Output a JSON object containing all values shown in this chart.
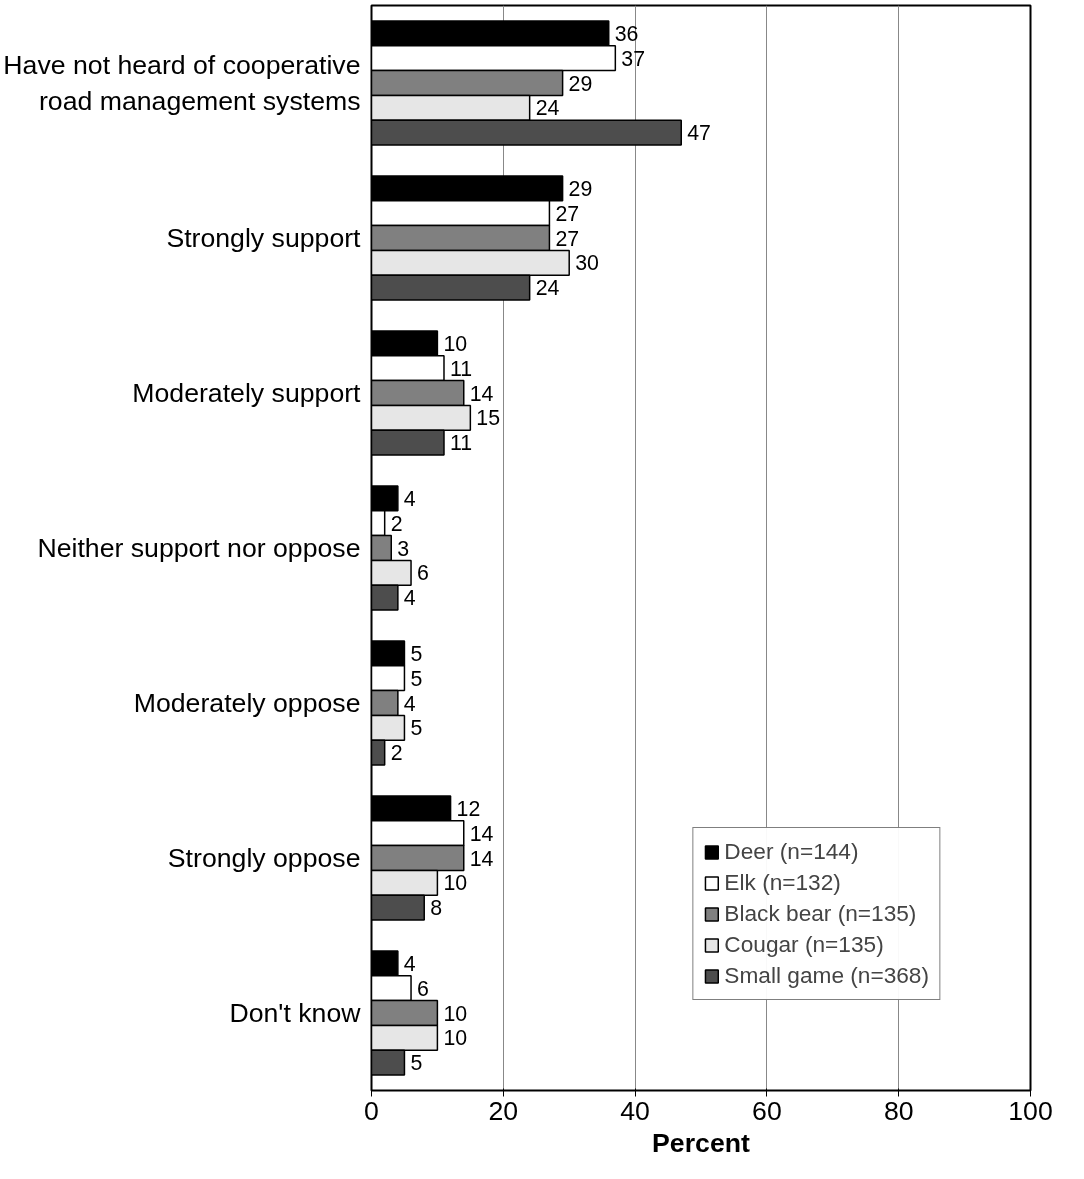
{
  "chart_data": {
    "type": "bar",
    "orientation": "horizontal",
    "xlabel": "Percent",
    "categories": [
      "Have not heard of cooperative\nroad management systems",
      "Strongly support",
      "Moderately support",
      "Neither support nor oppose",
      "Moderately oppose",
      "Strongly oppose",
      "Don't know"
    ],
    "series": [
      {
        "name": "Deer (n=144)",
        "color": "#000000",
        "values": [
          36,
          29,
          10,
          4,
          5,
          12,
          4
        ]
      },
      {
        "name": "Elk (n=132)",
        "color": "#ffffff",
        "values": [
          37,
          27,
          11,
          2,
          5,
          14,
          6
        ]
      },
      {
        "name": "Black bear (n=135)",
        "color": "#808080",
        "values": [
          29,
          27,
          14,
          3,
          4,
          14,
          10
        ]
      },
      {
        "name": "Cougar (n=135)",
        "color": "#e6e6e6",
        "values": [
          24,
          30,
          15,
          6,
          5,
          10,
          10
        ]
      },
      {
        "name": "Small game (n=368)",
        "color": "#4d4d4d",
        "values": [
          47,
          24,
          11,
          4,
          2,
          8,
          5
        ]
      }
    ],
    "xlim": [
      0,
      100
    ],
    "xticks": [
      0,
      20,
      40,
      60,
      80,
      100
    ],
    "grid": "x",
    "legend": "bottom right",
    "data_labels": true
  }
}
